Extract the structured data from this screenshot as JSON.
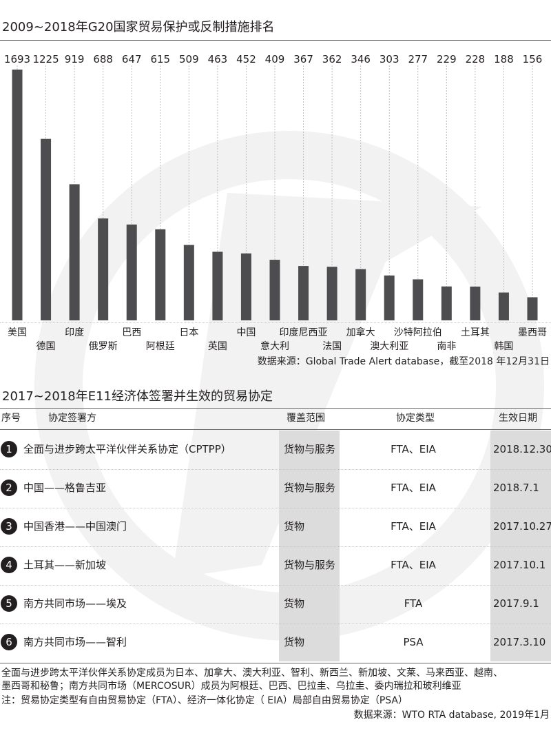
{
  "chart1": {
    "title": "2009~2018年G20国家贸易保护或反制措施排名",
    "source": "数据来源：Global Trade Alert database，截至2018 年12月31日"
  },
  "chart_data": {
    "type": "bar",
    "title": "2009~2018年G20国家贸易保护或反制措施排名",
    "categories": [
      "美国",
      "德国",
      "印度",
      "俄罗斯",
      "巴西",
      "阿根廷",
      "日本",
      "英国",
      "中国",
      "意大利",
      "印度尼西亚",
      "法国",
      "加拿大",
      "澳大利亚",
      "沙特阿拉伯",
      "南非",
      "土耳其",
      "韩国",
      "墨西哥"
    ],
    "values": [
      1693,
      1225,
      919,
      688,
      647,
      615,
      509,
      463,
      452,
      409,
      367,
      362,
      346,
      303,
      277,
      229,
      228,
      188,
      156
    ],
    "ylim": [
      0,
      1693
    ],
    "grid": false,
    "xlabel": "",
    "ylabel": "",
    "bar_color": "#4d4d4f",
    "guide_color": "#bdbdbd"
  },
  "table": {
    "title": "2017~2018年E11经济体签署并生效的贸易协定",
    "headers": {
      "seq": "序号",
      "party": "协定签署方",
      "scope": "覆盖范围",
      "type": "协定类型",
      "date": "生效日期"
    },
    "rows": [
      {
        "no": "1",
        "name": "全面与进步跨太平洋伙伴关系协定（CPTPP）",
        "scope": "货物与服务",
        "type": "FTA、EIA",
        "date": "2018.12.30"
      },
      {
        "no": "2",
        "name": "中国——格鲁吉亚",
        "scope": "货物与服务",
        "type": "FTA、EIA",
        "date": "2018.7.1"
      },
      {
        "no": "3",
        "name": "中国香港——中国澳门",
        "scope": "货物",
        "type": "FTA、EIA",
        "date": "2017.10.27"
      },
      {
        "no": "4",
        "name": "土耳其——新加坡",
        "scope": "货物与服务",
        "type": "FTA、EIA",
        "date": "2017.10.1"
      },
      {
        "no": "5",
        "name": "南方共同市场——埃及",
        "scope": "货物",
        "type": "FTA",
        "date": "2017.9.1"
      },
      {
        "no": "6",
        "name": "南方共同市场——智利",
        "scope": "货物",
        "type": "PSA",
        "date": "2017.3.10"
      }
    ],
    "notes": [
      "全面与进步跨太平洋伙伴关系协定成员为日本、加拿大、澳大利亚、智利、新西兰、新加坡、文莱、马来西亚、越南、",
      "墨西哥和秘鲁；南方共同市场（MERCOSUR）成员为阿根廷、巴西、巴拉圭、乌拉圭、委内瑞拉和玻利维亚",
      "注：贸易协定类型有自由贸易协定（FTA）、经济一体化协定（ EIA）局部自由贸易协定（PSA）"
    ],
    "source": "数据来源：WTO RTA database, 2019年1月"
  },
  "theme": {
    "text": "#231f20",
    "shade": "#dcdcdc",
    "watermark": "#f2f2f2"
  }
}
